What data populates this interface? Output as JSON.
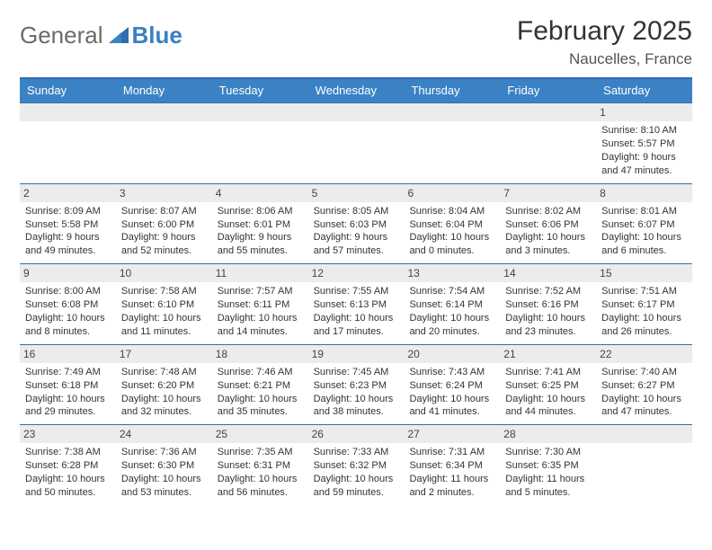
{
  "brand": {
    "part1": "General",
    "part2": "Blue",
    "accent_color": "#3b7fc4",
    "text_color": "#6b6b6b"
  },
  "title": "February 2025",
  "location": "Naucelles, France",
  "colors": {
    "header_bg": "#3b82c4",
    "header_text": "#ffffff",
    "row_border": "#2f6fb0",
    "date_bg": "#ececec",
    "body_text": "#333333"
  },
  "day_names": [
    "Sunday",
    "Monday",
    "Tuesday",
    "Wednesday",
    "Thursday",
    "Friday",
    "Saturday"
  ],
  "weeks": [
    [
      {
        "date": "",
        "sunrise": "",
        "sunset": "",
        "daylight": ""
      },
      {
        "date": "",
        "sunrise": "",
        "sunset": "",
        "daylight": ""
      },
      {
        "date": "",
        "sunrise": "",
        "sunset": "",
        "daylight": ""
      },
      {
        "date": "",
        "sunrise": "",
        "sunset": "",
        "daylight": ""
      },
      {
        "date": "",
        "sunrise": "",
        "sunset": "",
        "daylight": ""
      },
      {
        "date": "",
        "sunrise": "",
        "sunset": "",
        "daylight": ""
      },
      {
        "date": "1",
        "sunrise": "Sunrise: 8:10 AM",
        "sunset": "Sunset: 5:57 PM",
        "daylight": "Daylight: 9 hours and 47 minutes."
      }
    ],
    [
      {
        "date": "2",
        "sunrise": "Sunrise: 8:09 AM",
        "sunset": "Sunset: 5:58 PM",
        "daylight": "Daylight: 9 hours and 49 minutes."
      },
      {
        "date": "3",
        "sunrise": "Sunrise: 8:07 AM",
        "sunset": "Sunset: 6:00 PM",
        "daylight": "Daylight: 9 hours and 52 minutes."
      },
      {
        "date": "4",
        "sunrise": "Sunrise: 8:06 AM",
        "sunset": "Sunset: 6:01 PM",
        "daylight": "Daylight: 9 hours and 55 minutes."
      },
      {
        "date": "5",
        "sunrise": "Sunrise: 8:05 AM",
        "sunset": "Sunset: 6:03 PM",
        "daylight": "Daylight: 9 hours and 57 minutes."
      },
      {
        "date": "6",
        "sunrise": "Sunrise: 8:04 AM",
        "sunset": "Sunset: 6:04 PM",
        "daylight": "Daylight: 10 hours and 0 minutes."
      },
      {
        "date": "7",
        "sunrise": "Sunrise: 8:02 AM",
        "sunset": "Sunset: 6:06 PM",
        "daylight": "Daylight: 10 hours and 3 minutes."
      },
      {
        "date": "8",
        "sunrise": "Sunrise: 8:01 AM",
        "sunset": "Sunset: 6:07 PM",
        "daylight": "Daylight: 10 hours and 6 minutes."
      }
    ],
    [
      {
        "date": "9",
        "sunrise": "Sunrise: 8:00 AM",
        "sunset": "Sunset: 6:08 PM",
        "daylight": "Daylight: 10 hours and 8 minutes."
      },
      {
        "date": "10",
        "sunrise": "Sunrise: 7:58 AM",
        "sunset": "Sunset: 6:10 PM",
        "daylight": "Daylight: 10 hours and 11 minutes."
      },
      {
        "date": "11",
        "sunrise": "Sunrise: 7:57 AM",
        "sunset": "Sunset: 6:11 PM",
        "daylight": "Daylight: 10 hours and 14 minutes."
      },
      {
        "date": "12",
        "sunrise": "Sunrise: 7:55 AM",
        "sunset": "Sunset: 6:13 PM",
        "daylight": "Daylight: 10 hours and 17 minutes."
      },
      {
        "date": "13",
        "sunrise": "Sunrise: 7:54 AM",
        "sunset": "Sunset: 6:14 PM",
        "daylight": "Daylight: 10 hours and 20 minutes."
      },
      {
        "date": "14",
        "sunrise": "Sunrise: 7:52 AM",
        "sunset": "Sunset: 6:16 PM",
        "daylight": "Daylight: 10 hours and 23 minutes."
      },
      {
        "date": "15",
        "sunrise": "Sunrise: 7:51 AM",
        "sunset": "Sunset: 6:17 PM",
        "daylight": "Daylight: 10 hours and 26 minutes."
      }
    ],
    [
      {
        "date": "16",
        "sunrise": "Sunrise: 7:49 AM",
        "sunset": "Sunset: 6:18 PM",
        "daylight": "Daylight: 10 hours and 29 minutes."
      },
      {
        "date": "17",
        "sunrise": "Sunrise: 7:48 AM",
        "sunset": "Sunset: 6:20 PM",
        "daylight": "Daylight: 10 hours and 32 minutes."
      },
      {
        "date": "18",
        "sunrise": "Sunrise: 7:46 AM",
        "sunset": "Sunset: 6:21 PM",
        "daylight": "Daylight: 10 hours and 35 minutes."
      },
      {
        "date": "19",
        "sunrise": "Sunrise: 7:45 AM",
        "sunset": "Sunset: 6:23 PM",
        "daylight": "Daylight: 10 hours and 38 minutes."
      },
      {
        "date": "20",
        "sunrise": "Sunrise: 7:43 AM",
        "sunset": "Sunset: 6:24 PM",
        "daylight": "Daylight: 10 hours and 41 minutes."
      },
      {
        "date": "21",
        "sunrise": "Sunrise: 7:41 AM",
        "sunset": "Sunset: 6:25 PM",
        "daylight": "Daylight: 10 hours and 44 minutes."
      },
      {
        "date": "22",
        "sunrise": "Sunrise: 7:40 AM",
        "sunset": "Sunset: 6:27 PM",
        "daylight": "Daylight: 10 hours and 47 minutes."
      }
    ],
    [
      {
        "date": "23",
        "sunrise": "Sunrise: 7:38 AM",
        "sunset": "Sunset: 6:28 PM",
        "daylight": "Daylight: 10 hours and 50 minutes."
      },
      {
        "date": "24",
        "sunrise": "Sunrise: 7:36 AM",
        "sunset": "Sunset: 6:30 PM",
        "daylight": "Daylight: 10 hours and 53 minutes."
      },
      {
        "date": "25",
        "sunrise": "Sunrise: 7:35 AM",
        "sunset": "Sunset: 6:31 PM",
        "daylight": "Daylight: 10 hours and 56 minutes."
      },
      {
        "date": "26",
        "sunrise": "Sunrise: 7:33 AM",
        "sunset": "Sunset: 6:32 PM",
        "daylight": "Daylight: 10 hours and 59 minutes."
      },
      {
        "date": "27",
        "sunrise": "Sunrise: 7:31 AM",
        "sunset": "Sunset: 6:34 PM",
        "daylight": "Daylight: 11 hours and 2 minutes."
      },
      {
        "date": "28",
        "sunrise": "Sunrise: 7:30 AM",
        "sunset": "Sunset: 6:35 PM",
        "daylight": "Daylight: 11 hours and 5 minutes."
      },
      {
        "date": "",
        "sunrise": "",
        "sunset": "",
        "daylight": ""
      }
    ]
  ]
}
